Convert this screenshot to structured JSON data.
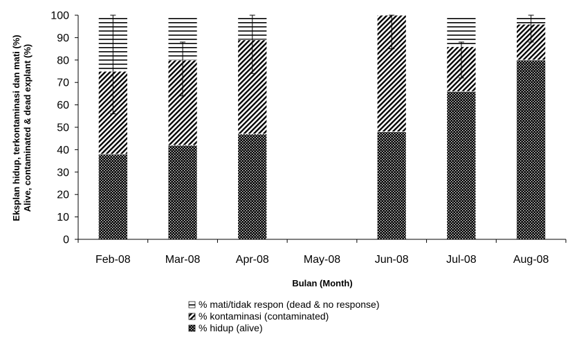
{
  "chart_data": {
    "type": "bar",
    "stacked": true,
    "categories": [
      "Feb-08",
      "Mar-08",
      "Apr-08",
      "May-08",
      "Jun-08",
      "Jul-08",
      "Aug-08"
    ],
    "series": [
      {
        "name": "% hidup (alive)",
        "values": [
          38,
          42,
          47,
          null,
          48,
          66,
          80
        ],
        "pattern": "checker"
      },
      {
        "name": "% kontaminasi (contaminated)",
        "values": [
          37,
          38,
          42,
          null,
          52,
          20,
          16
        ],
        "pattern": "diagonal"
      },
      {
        "name": "% mati/tidak respon (dead & no response)",
        "values": [
          25,
          20,
          11,
          null,
          0,
          14,
          4
        ],
        "pattern": "horizontal"
      }
    ],
    "error_bars": [
      {
        "category": "Feb-08",
        "center": 75,
        "low": 56,
        "high": 100
      },
      {
        "category": "Mar-08",
        "center": 80,
        "low": 64,
        "high": 88
      },
      {
        "category": "Apr-08",
        "center": 89,
        "low": 74,
        "high": 100
      },
      {
        "category": "Jun-08",
        "center": 100,
        "low": 85,
        "high": 100
      },
      {
        "category": "Jul-08",
        "center": 86,
        "low": 72,
        "high": 88
      },
      {
        "category": "Aug-08",
        "center": 96,
        "low": 88,
        "high": 100
      }
    ],
    "xlabel": "Bulan (Month)",
    "ylabel_line1": "Eksplan hidup, terkontaminasi dan mati (%)",
    "ylabel_line2": "Alive, contaminated & dead explant (%)",
    "ylim": [
      0,
      100
    ],
    "yticks": [
      0,
      10,
      20,
      30,
      40,
      50,
      60,
      70,
      80,
      90,
      100
    ],
    "legend_position": "bottom",
    "grid": false
  }
}
